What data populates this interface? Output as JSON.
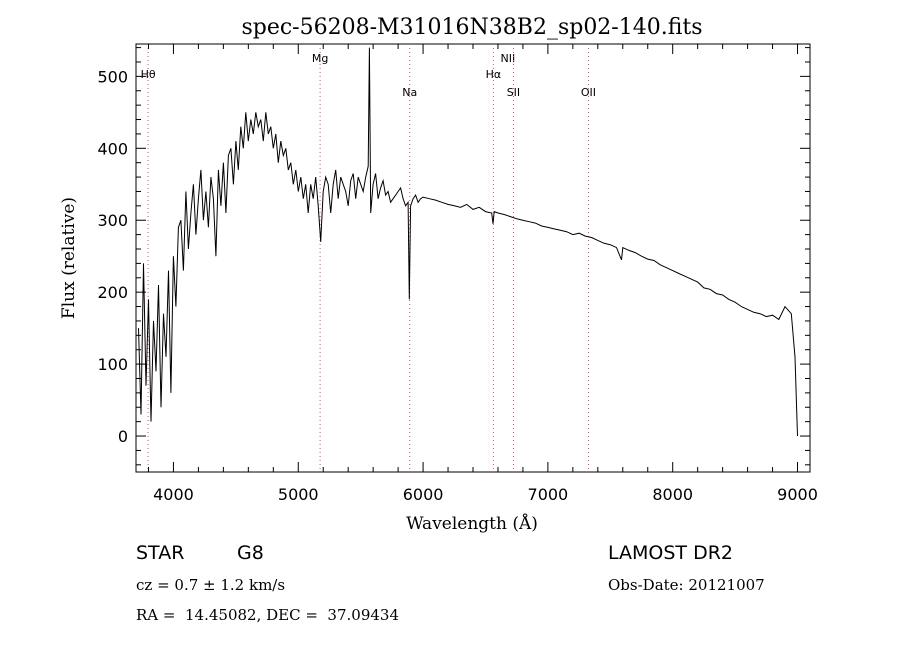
{
  "chart_data": {
    "type": "line",
    "title": "spec-56208-M31016N38B2_sp02-140.fits",
    "xlabel": "Wavelength (Å)",
    "ylabel": "Flux (relative)",
    "xlim": [
      3700,
      9100
    ],
    "ylim": [
      -50,
      545
    ],
    "xticks": [
      4000,
      5000,
      6000,
      7000,
      8000,
      9000
    ],
    "yticks": [
      0,
      100,
      200,
      300,
      400,
      500
    ],
    "grid": false,
    "line_color": "#000000",
    "marker_line_color": "#e05050",
    "spectral_lines": [
      {
        "name": "Hθ",
        "x": 3797
      },
      {
        "name": "Mg",
        "x": 5175
      },
      {
        "name": "Na",
        "x": 5893
      },
      {
        "name": "NII",
        "x": 6583
      },
      {
        "name": "Hα",
        "x": 6563
      },
      {
        "name": "SII",
        "x": 6724
      },
      {
        "name": "OII",
        "x": 7325
      }
    ],
    "series": [
      {
        "x": [
          3720,
          3740,
          3760,
          3780,
          3800,
          3820,
          3840,
          3860,
          3880,
          3900,
          3920,
          3940,
          3960,
          3980,
          4000,
          4020,
          4040,
          4060,
          4080,
          4100,
          4120,
          4140,
          4160,
          4180,
          4200,
          4220,
          4240,
          4260,
          4280,
          4300,
          4320,
          4340,
          4360,
          4380,
          4400,
          4420,
          4440,
          4460,
          4480,
          4500,
          4520,
          4540,
          4560,
          4580,
          4600,
          4620,
          4640,
          4660,
          4680,
          4700,
          4720,
          4740,
          4760,
          4780,
          4800,
          4820,
          4840,
          4860,
          4880,
          4900,
          4920,
          4940,
          4960,
          4980,
          5000,
          5020,
          5040,
          5060,
          5080,
          5100,
          5120,
          5140,
          5160,
          5180,
          5200,
          5220,
          5240,
          5260,
          5280,
          5300,
          5320,
          5340,
          5360,
          5380,
          5400,
          5420,
          5440,
          5460,
          5480,
          5500,
          5520,
          5540,
          5560,
          5570,
          5580,
          5600,
          5620,
          5640,
          5660,
          5680,
          5700,
          5720,
          5740,
          5760,
          5780,
          5800,
          5820,
          5840,
          5860,
          5880,
          5890,
          5900,
          5920,
          5940,
          5960,
          5980,
          6000,
          6050,
          6100,
          6150,
          6200,
          6250,
          6300,
          6350,
          6400,
          6450,
          6500,
          6550,
          6560,
          6570,
          6600,
          6650,
          6700,
          6750,
          6800,
          6850,
          6900,
          6950,
          7000,
          7050,
          7100,
          7150,
          7200,
          7250,
          7300,
          7350,
          7400,
          7450,
          7500,
          7550,
          7590,
          7600,
          7650,
          7700,
          7750,
          7800,
          7850,
          7900,
          7950,
          8000,
          8050,
          8100,
          8150,
          8200,
          8250,
          8300,
          8350,
          8400,
          8450,
          8500,
          8550,
          8600,
          8650,
          8700,
          8750,
          8800,
          8850,
          8900,
          8950,
          8980,
          9000
        ],
        "y": [
          150,
          30,
          240,
          70,
          190,
          20,
          160,
          90,
          210,
          40,
          170,
          110,
          230,
          60,
          250,
          180,
          290,
          300,
          230,
          340,
          260,
          310,
          350,
          280,
          330,
          370,
          300,
          340,
          290,
          360,
          330,
          250,
          370,
          320,
          380,
          310,
          390,
          400,
          350,
          410,
          370,
          430,
          400,
          450,
          410,
          440,
          420,
          450,
          430,
          440,
          410,
          450,
          420,
          430,
          400,
          420,
          380,
          410,
          390,
          400,
          370,
          380,
          350,
          370,
          340,
          360,
          330,
          350,
          310,
          350,
          330,
          360,
          320,
          270,
          340,
          360,
          350,
          310,
          350,
          370,
          330,
          360,
          350,
          340,
          320,
          355,
          365,
          330,
          360,
          350,
          340,
          360,
          375,
          540,
          310,
          350,
          365,
          330,
          345,
          355,
          335,
          340,
          325,
          330,
          335,
          340,
          345,
          330,
          320,
          325,
          190,
          320,
          330,
          335,
          325,
          330,
          332,
          330,
          328,
          325,
          322,
          320,
          318,
          322,
          315,
          318,
          312,
          310,
          295,
          312,
          310,
          308,
          305,
          302,
          300,
          298,
          296,
          292,
          290,
          288,
          286,
          284,
          280,
          282,
          278,
          276,
          272,
          268,
          266,
          262,
          245,
          262,
          258,
          255,
          250,
          246,
          244,
          238,
          234,
          230,
          226,
          222,
          218,
          214,
          206,
          204,
          198,
          196,
          190,
          186,
          180,
          176,
          172,
          170,
          166,
          168,
          162,
          180,
          170,
          110,
          0
        ]
      }
    ]
  },
  "footer": {
    "object_class": "STAR",
    "subclass": "G8",
    "survey": "LAMOST DR2",
    "redshift": "cz = 0.7 ± 1.2 km/s",
    "obs_date": "Obs-Date: 20121007",
    "coords": "RA =  14.45082, DEC =  37.09434"
  }
}
